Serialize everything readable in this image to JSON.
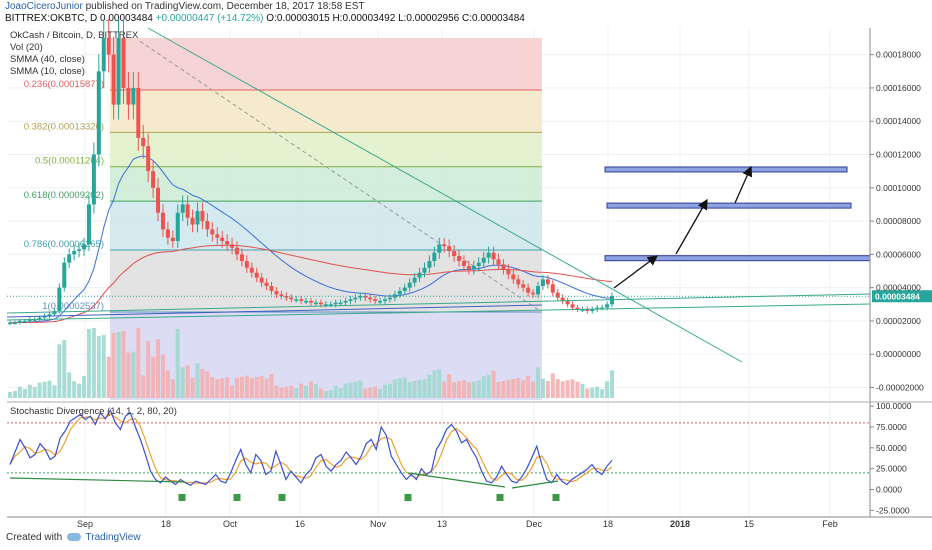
{
  "header": {
    "author": "JoaoCiceroJunior",
    "published": "published on TradingView.com, December 18, 2017 18:58 EST",
    "symbol": "BITTREX:OKBTC, D",
    "price": "0.00003484",
    "change": "+0.00000447 (+14.72%)",
    "ohlc": "O:0.00003015  H:0.00003492  L:0.00002956  C:0.00003484"
  },
  "legend": {
    "title": "OkCash / Bitcoin, D, BITTREX",
    "vol": "Vol (20)",
    "smma40": "SMMA (40, close)",
    "smma10": "SMMA (10, close)"
  },
  "footer": {
    "created": "Created with",
    "brand": "TradingView"
  },
  "colors": {
    "up": "#26a69a",
    "down": "#ef5350",
    "smma10": "#3a6fd8",
    "smma40": "#e0504f",
    "trend": "#3aa88a",
    "arrow": "#111111",
    "stochK": "#3a4fd0",
    "stochD": "#f0a030"
  },
  "chart_data": [
    {
      "type": "candlestick",
      "title": "OkCash / Bitcoin, D, BITTREX",
      "x_ticks": [
        "Sep",
        "18",
        "Oct",
        "16",
        "Nov",
        "13",
        "Dec",
        "18",
        "2018",
        "15",
        "Feb"
      ],
      "y_ticks": [
        "0.00018000",
        "0.00016000",
        "0.00014000",
        "0.00012000",
        "0.00010000",
        "0.00008000",
        "0.00006000",
        "0.00004000",
        "0.00002000",
        "0.00000000",
        "-0.00002000"
      ],
      "ylim": [
        -2.75e-05,
        0.000196
      ],
      "current_price": "0.00003484",
      "closes": [
        1.9e-05,
        1.9e-05,
        2e-05,
        2e-05,
        2.1e-05,
        2.1e-05,
        2.2e-05,
        2.3e-05,
        2.4e-05,
        2.6e-05,
        4e-05,
        5.5e-05,
        6e-05,
        6.2e-05,
        6.3e-05,
        6.6e-05,
        9e-05,
        0.00012,
        0.00017,
        0.00019,
        0.00018,
        0.00015,
        0.00019,
        0.00016,
        0.00015,
        0.00016,
        0.00013,
        0.000125,
        0.00011,
        0.0001,
        8.5e-05,
        7.5e-05,
        7e-05,
        6.8e-05,
        8.5e-05,
        9e-05,
        8.2e-05,
        7.8e-05,
        8.6e-05,
        8e-05,
        7.5e-05,
        7.2e-05,
        7e-05,
        6.8e-05,
        6.6e-05,
        6.4e-05,
        6e-05,
        5.6e-05,
        5.2e-05,
        4.9e-05,
        4.6e-05,
        4.3e-05,
        4.1e-05,
        3.8e-05,
        3.6e-05,
        3.5e-05,
        3.4e-05,
        3.3e-05,
        3.3e-05,
        3.2e-05,
        3.2e-05,
        3.1e-05,
        3.1e-05,
        3e-05,
        3e-05,
        3e-05,
        3.1e-05,
        3.1e-05,
        3.2e-05,
        3.3e-05,
        3.4e-05,
        3.5e-05,
        3.4e-05,
        3.3e-05,
        3.2e-05,
        3.2e-05,
        3.3e-05,
        3.4e-05,
        3.6e-05,
        3.8e-05,
        4e-05,
        4.3e-05,
        4.6e-05,
        4.9e-05,
        5.2e-05,
        5.6e-05,
        6.1e-05,
        6.6e-05,
        6.5e-05,
        6.2e-05,
        5.9e-05,
        5.6e-05,
        5.3e-05,
        5.1e-05,
        5.3e-05,
        5.5e-05,
        5.8e-05,
        6.1e-05,
        5.7e-05,
        5.4e-05,
        5.1e-05,
        4.8e-05,
        4.5e-05,
        4.2e-05,
        4e-05,
        3.7e-05,
        3.6e-05,
        4.1e-05,
        4.5e-05,
        4.2e-05,
        3.7e-05,
        3.4e-05,
        3.2e-05,
        3e-05,
        2.8e-05,
        2.7e-05,
        2.7e-05,
        2.6e-05,
        2.7e-05,
        2.8e-05,
        2.8e-05,
        3e-05,
        3.5e-05
      ],
      "fibonacci": [
        {
          "level": "0.236(0.00015877)",
          "price": 0.00015877
        },
        {
          "level": "0.382(0.00013326)",
          "price": 0.00013326
        },
        {
          "level": "0.5(0.00011264)",
          "price": 0.00011264
        },
        {
          "level": "0.618(0.00009202)",
          "price": 9.202e-05
        },
        {
          "level": "0.786(0.00006265)",
          "price": 6.265e-05
        },
        {
          "level": "1(0.00002537)",
          "price": 2.537e-05
        }
      ],
      "target_zones": [
        5.77e-05,
        8.93e-05,
        0.000111
      ]
    },
    {
      "type": "line",
      "title": "Stochastic Divergence (14, 1, 2, 80, 20)",
      "y_ticks": [
        "100.0000",
        "75.0000",
        "50.0000",
        "25.0000",
        "0.0000",
        "-25.0000"
      ],
      "ylim": [
        -33,
        105
      ],
      "overbought": 80,
      "oversold": 20,
      "k": [
        30,
        45,
        60,
        50,
        38,
        42,
        55,
        48,
        36,
        40,
        62,
        70,
        82,
        86,
        90,
        84,
        88,
        78,
        92,
        85,
        95,
        80,
        72,
        88,
        92,
        75,
        60,
        42,
        22,
        12,
        8,
        15,
        10,
        6,
        12,
        8,
        5,
        10,
        8,
        6,
        12,
        18,
        10,
        8,
        20,
        35,
        48,
        30,
        20,
        42,
        35,
        18,
        22,
        46,
        30,
        12,
        22,
        15,
        8,
        18,
        24,
        38,
        42,
        28,
        22,
        30,
        35,
        45,
        38,
        30,
        40,
        55,
        60,
        48,
        75,
        65,
        40,
        30,
        20,
        12,
        18,
        12,
        25,
        18,
        22,
        48,
        58,
        72,
        78,
        70,
        56,
        60,
        48,
        38,
        22,
        10,
        8,
        15,
        28,
        18,
        10,
        8,
        15,
        25,
        38,
        52,
        30,
        12,
        8,
        18,
        10,
        6,
        12,
        16,
        20,
        24,
        30,
        22,
        18,
        28,
        35
      ]
    }
  ]
}
